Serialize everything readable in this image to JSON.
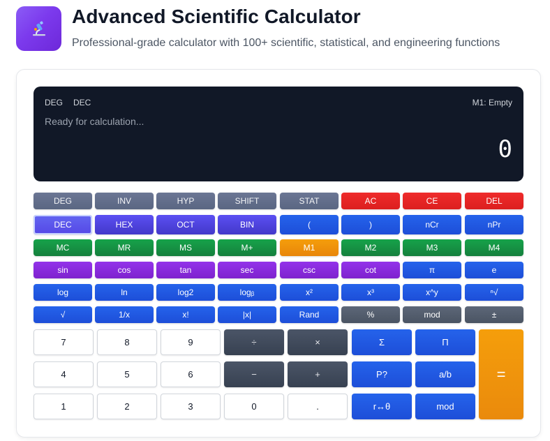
{
  "header": {
    "title": "Advanced Scientific Calculator",
    "subtitle": "Professional-grade calculator with 100+ scientific, statistical, and engineering functions"
  },
  "display": {
    "angle_mode": "DEG",
    "number_base": "DEC",
    "memory_status": "M1: Empty",
    "expression": "Ready for calculation...",
    "result": "0"
  },
  "rows": {
    "modes": [
      "DEG",
      "INV",
      "HYP",
      "SHIFT",
      "STAT",
      "AC",
      "CE",
      "DEL"
    ],
    "bases": [
      "DEC",
      "HEX",
      "OCT",
      "BIN",
      "(",
      ")",
      "nCr",
      "nPr"
    ],
    "memory": [
      "MC",
      "MR",
      "MS",
      "M+",
      "M1",
      "M2",
      "M3",
      "M4"
    ],
    "trig": [
      "sin",
      "cos",
      "tan",
      "sec",
      "csc",
      "cot",
      "π",
      "e"
    ],
    "powers": [
      "log",
      "ln",
      "log2",
      "logᵦ",
      "x²",
      "x³",
      "x^y",
      "ⁿ√"
    ],
    "misc": [
      "√",
      "1/x",
      "x!",
      "|x|",
      "Rand",
      "%",
      "mod",
      "±"
    ]
  },
  "keypad": {
    "row1": [
      "7",
      "8",
      "9",
      "÷",
      "×",
      "Σ",
      "Π"
    ],
    "row2": [
      "4",
      "5",
      "6",
      "−",
      "+",
      "P?",
      "a/b"
    ],
    "row3": [
      "1",
      "2",
      "3",
      "0",
      ".",
      "r↔θ",
      "mod"
    ],
    "equals": "="
  },
  "colors": {
    "accent_purple": "#7c3aed",
    "display_bg": "#111827",
    "clear_red": "#dc2626",
    "digit_blue": "#2563eb",
    "memory_green": "#16a34a",
    "equals_orange": "#f59e0b"
  },
  "icons": {
    "logo": "microscope-icon"
  }
}
